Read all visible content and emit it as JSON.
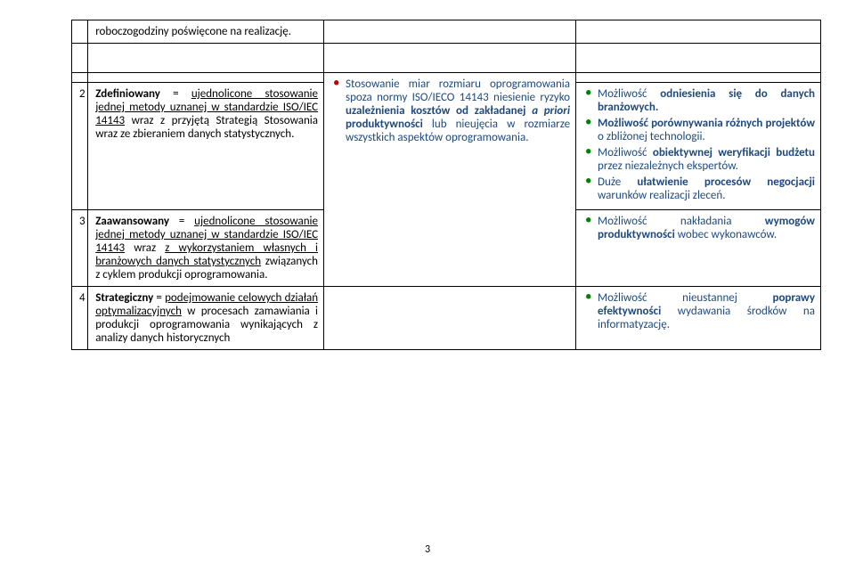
{
  "row0": {
    "text": "roboczogodziny poświęcone na realizację."
  },
  "centerList": {
    "item1": {
      "pre": "Stosowanie miar rozmiaru oprogramowania spoza normy ISO/IECO 14143 niesienie ryzyko ",
      "bold1": "uzależnienia kosztów od zakładanej ",
      "italic": "a priori",
      "bold2": " produktywności",
      "post": " lub nieujęcia w rozmiarze wszystkich aspektów oprogramowania."
    }
  },
  "row2": {
    "num": "2",
    "def_label": "Zdefiniowany",
    "def_eq": " = ",
    "def_text1": "ujednolicone stosowanie jednej metody uznanej w standardzie ISO/IEC 14143",
    "def_text2": " wraz z przyjętą Strategią Stosowania wraz ze zbieraniem danych statystycznych.",
    "right": {
      "b1a": "Możliwość",
      "b1b": " odniesienia się do danych branżowych.",
      "b2a": "Możliwość porównywania różnych projektów",
      "b2b": " o zbliżonej technologii.",
      "b3a": "Możliwość ",
      "b3b": "obiektywnej weryfikacji budżetu",
      "b3c": " przez niezależnych ekspertów.",
      "b4a": "Duże ",
      "b4b": "ułatwienie procesów negocjacji",
      "b4c": " warunków realizacji zleceń."
    }
  },
  "row3": {
    "num": "3",
    "def_label": "Zaawansowany",
    "def_eq": " = ",
    "def_text1": "ujednolicone stosowanie jednej metody uznanej w standardzie ISO/IEC 14143",
    "def_text2": " wraz ",
    "def_text3": "z wykorzystaniem własnych i branżowych danych statystycznych",
    "def_text4": " związanych z cyklem produkcji oprogramowania.",
    "right": {
      "b1a": "Możliwość nakładania ",
      "b1b": "wymogów produktywności",
      "b1c": " wobec wykonawców."
    }
  },
  "row4": {
    "num": "4",
    "def_label": "Strategiczny",
    "def_eq": " = ",
    "def_text1": "podejmowanie celowych działań optymalizacyjnych",
    "def_text2": " w procesach zamawiania i produkcji oprogramowania wynikających z analizy danych historycznych",
    "right": {
      "b1a": "Możliwość nieustannej ",
      "b1b": "poprawy efektywności",
      "b1c": " wydawania środków na informatyzację."
    }
  },
  "pageNumber": "3",
  "colors": {
    "blue": "#1f497d",
    "red": "#c00000",
    "green": "#008000",
    "black": "#000000",
    "white": "#ffffff"
  }
}
